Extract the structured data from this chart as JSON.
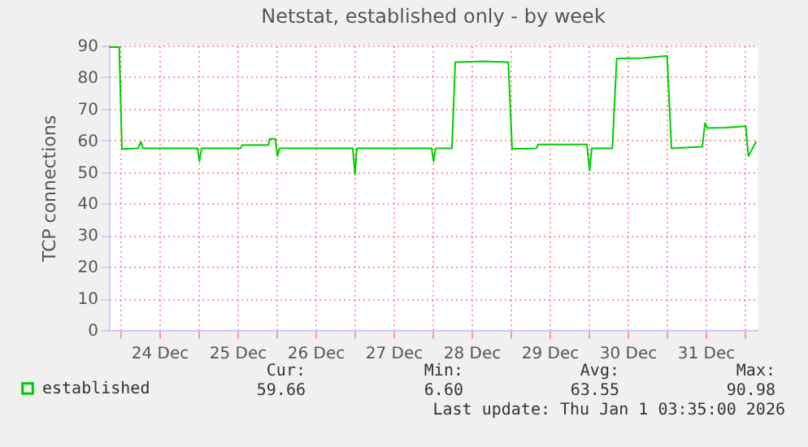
{
  "chart_data": {
    "type": "line",
    "title": "Netstat, established only - by week",
    "ylabel": "TCP connections",
    "xlim": [
      "2025-12-23T20:30",
      "2026-01-01T04:00"
    ],
    "xticks": [
      {
        "value": "2025-12-24T00:00",
        "label": null
      },
      {
        "value": "2025-12-24T12:00",
        "label": "24 Dec"
      },
      {
        "value": "2025-12-25T00:00",
        "label": null
      },
      {
        "value": "2025-12-25T12:00",
        "label": "25 Dec"
      },
      {
        "value": "2025-12-26T00:00",
        "label": null
      },
      {
        "value": "2025-12-26T12:00",
        "label": "26 Dec"
      },
      {
        "value": "2025-12-27T00:00",
        "label": null
      },
      {
        "value": "2025-12-27T12:00",
        "label": "27 Dec"
      },
      {
        "value": "2025-12-28T00:00",
        "label": null
      },
      {
        "value": "2025-12-28T12:00",
        "label": "28 Dec"
      },
      {
        "value": "2025-12-29T00:00",
        "label": null
      },
      {
        "value": "2025-12-29T12:00",
        "label": "29 Dec"
      },
      {
        "value": "2025-12-30T00:00",
        "label": null
      },
      {
        "value": "2025-12-30T12:00",
        "label": "30 Dec"
      },
      {
        "value": "2025-12-31T00:00",
        "label": null
      },
      {
        "value": "2025-12-31T12:00",
        "label": "31 Dec"
      },
      {
        "value": "2026-01-01T00:00",
        "label": null
      }
    ],
    "ylim": [
      0,
      90
    ],
    "yticks": [
      0,
      10,
      20,
      30,
      40,
      50,
      60,
      70,
      80,
      90
    ],
    "grid": true,
    "legend": "bottom",
    "marker": "none",
    "line_style": "solid",
    "x": [
      "2025-12-23T20:30",
      "2025-12-23T23:40",
      "2025-12-24T00:30",
      "2025-12-24T05:30",
      "2025-12-24T06:20",
      "2025-12-24T07:00",
      "2025-12-24T23:45",
      "2025-12-25T00:20",
      "2025-12-25T01:00",
      "2025-12-25T13:00",
      "2025-12-25T13:30",
      "2025-12-25T21:30",
      "2025-12-25T22:00",
      "2025-12-25T23:40",
      "2025-12-26T00:20",
      "2025-12-26T01:00",
      "2025-12-26T23:30",
      "2025-12-27T00:10",
      "2025-12-27T00:45",
      "2025-12-27T23:45",
      "2025-12-28T00:20",
      "2025-12-28T01:00",
      "2025-12-28T06:00",
      "2025-12-28T07:00",
      "2025-12-28T15:30",
      "2025-12-28T23:20",
      "2025-12-29T00:30",
      "2025-12-29T08:00",
      "2025-12-29T08:30",
      "2025-12-29T23:30",
      "2025-12-30T00:20",
      "2025-12-30T01:00",
      "2025-12-30T07:20",
      "2025-12-30T08:40",
      "2025-12-30T16:30",
      "2025-12-31T00:10",
      "2025-12-31T01:30",
      "2025-12-31T11:00",
      "2025-12-31T11:50",
      "2025-12-31T12:30",
      "2025-12-31T18:30",
      "2026-01-01T00:20",
      "2026-01-01T01:10",
      "2026-01-01T03:35"
    ],
    "series": [
      {
        "name": "established",
        "color": "#00cc00",
        "values": [
          89.5,
          89.5,
          57.3,
          57.5,
          59.5,
          57.5,
          57.5,
          53.3,
          57.5,
          57.5,
          58.5,
          58.5,
          60.5,
          60.5,
          55,
          57.5,
          57.5,
          49.2,
          57.5,
          57.5,
          53.3,
          57.5,
          57.5,
          84.7,
          85,
          84.7,
          57.3,
          57.5,
          58.7,
          58.7,
          50.4,
          57.5,
          57.5,
          85.9,
          86,
          86.7,
          57.5,
          58,
          65.5,
          63.9,
          64,
          64.5,
          55,
          59.66
        ]
      }
    ],
    "annotations": [
      "Cur:",
      "Min:",
      "Avg:",
      "Max:",
      "59.66",
      "6.60",
      "63.55",
      "90.98",
      "Last update: Thu Jan  1 03:35:00 2026"
    ]
  }
}
